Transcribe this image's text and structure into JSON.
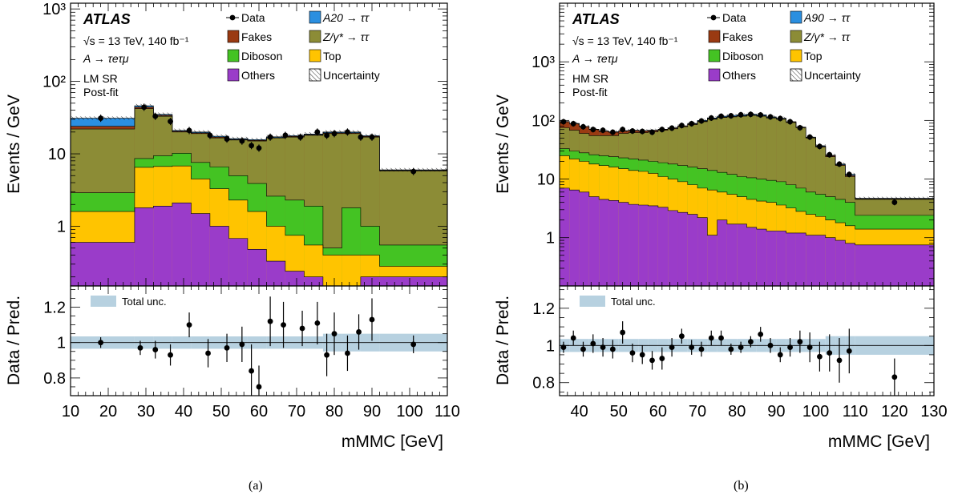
{
  "figure": {
    "captions": [
      "(a)",
      "(b)"
    ]
  },
  "colors": {
    "data": "#000000",
    "signal": "#2b8fe0",
    "fakes": "#9a3a12",
    "ztt": "#8c8c36",
    "diboson": "#44c323",
    "top": "#ffc400",
    "others": "#9a3cc9",
    "uncertainty_band": "#b7d1e0"
  },
  "chart_data": [
    {
      "type": "area",
      "panel": "(a)",
      "experiment": "ATLAS",
      "energy_label": "√s = 13 TeV, 140 fb⁻¹",
      "process_label": "A → τeτμ",
      "region_labels": [
        "LM SR",
        "Post-fit"
      ],
      "ylabel": "Events / GeV",
      "ratio_ylabel": "Data / Pred.",
      "xlabel": "mMMC [GeV]",
      "xlim": [
        10,
        110
      ],
      "ylim": [
        0.15,
        1200
      ],
      "yscale": "log",
      "xticks": [
        10,
        20,
        30,
        40,
        50,
        60,
        70,
        80,
        90,
        100,
        110
      ],
      "yticks": [
        {
          "v": 1000,
          "label": "10³"
        },
        {
          "v": 100,
          "label": "10²"
        },
        {
          "v": 10,
          "label": "10"
        },
        {
          "v": 1,
          "label": "1"
        }
      ],
      "ratio_ylim": [
        0.7,
        1.32
      ],
      "ratio_yticks": [
        0.8,
        1,
        1.2
      ],
      "ratio_ytick_labels": [
        "0.8",
        "1",
        "1.2"
      ],
      "legend": [
        {
          "label": "Data",
          "kind": "data"
        },
        {
          "label": "A20 → ττ",
          "kind": "fill",
          "color": "#2b8fe0"
        },
        {
          "label": "Fakes",
          "kind": "fill",
          "color": "#9a3a12"
        },
        {
          "label": "Z/γ* → ττ",
          "kind": "fill",
          "color": "#8c8c36"
        },
        {
          "label": "Diboson",
          "kind": "fill",
          "color": "#44c323"
        },
        {
          "label": "Top",
          "kind": "fill",
          "color": "#ffc400"
        },
        {
          "label": "Others",
          "kind": "fill",
          "color": "#9a3cc9"
        },
        {
          "label": "Uncertainty",
          "kind": "hatch"
        }
      ],
      "ratio_legend": "Total unc.",
      "bin_edges": [
        10,
        27,
        32,
        37,
        42,
        47,
        52,
        57,
        62,
        67,
        72,
        77,
        82,
        87,
        92,
        110
      ],
      "stacks": [
        {
          "name": "Others",
          "color": "#9a3cc9",
          "cumulative": [
            0.6,
            1.8,
            1.9,
            2.1,
            1.5,
            1.0,
            0.68,
            0.48,
            0.33,
            0.24,
            0.2,
            0.15,
            0.15,
            0.2,
            0.2
          ]
        },
        {
          "name": "Top",
          "color": "#ffc400",
          "cumulative": [
            1.6,
            6.5,
            6.7,
            6.8,
            4.5,
            3.3,
            2.3,
            1.6,
            1.0,
            0.75,
            0.55,
            0.4,
            0.4,
            0.4,
            0.28
          ]
        },
        {
          "name": "Diboson",
          "color": "#44c323",
          "cumulative": [
            2.9,
            8.6,
            9.4,
            10.2,
            7.6,
            6.6,
            5.0,
            3.9,
            2.6,
            2.3,
            1.9,
            0.5,
            1.8,
            1.0,
            0.55
          ]
        },
        {
          "name": "Z/γ* → ττ",
          "color": "#8c8c36",
          "cumulative": [
            22,
            42,
            33,
            20,
            19,
            16.5,
            15.5,
            15,
            16.5,
            17,
            18,
            19,
            19,
            17,
            5.8
          ]
        },
        {
          "name": "Fakes",
          "color": "#9a3a12",
          "cumulative": [
            24,
            44,
            34,
            20.5,
            19.5,
            17,
            15.8,
            15.3,
            16.8,
            17.4,
            18.4,
            19.5,
            19.5,
            17.4,
            5.9
          ]
        },
        {
          "name": "A20 → ττ",
          "color": "#2b8fe0",
          "cumulative": [
            31,
            46,
            35,
            21,
            20,
            17.5,
            16.2,
            15.7,
            17.2,
            17.8,
            18.8,
            20,
            20,
            17.8,
            6.0
          ]
        }
      ],
      "data_points": [
        {
          "x": 18,
          "y": 31
        },
        {
          "x": 29.5,
          "y": 44
        },
        {
          "x": 32.5,
          "y": 33
        },
        {
          "x": 36.5,
          "y": 28
        },
        {
          "x": 41.5,
          "y": 21
        },
        {
          "x": 47,
          "y": 18
        },
        {
          "x": 51.5,
          "y": 16
        },
        {
          "x": 55.5,
          "y": 15
        },
        {
          "x": 58,
          "y": 13
        },
        {
          "x": 60,
          "y": 12
        },
        {
          "x": 63,
          "y": 17
        },
        {
          "x": 67,
          "y": 18
        },
        {
          "x": 71,
          "y": 17
        },
        {
          "x": 75.5,
          "y": 20
        },
        {
          "x": 78,
          "y": 18
        },
        {
          "x": 80,
          "y": 19
        },
        {
          "x": 83.5,
          "y": 20
        },
        {
          "x": 87,
          "y": 17
        },
        {
          "x": 90,
          "y": 17
        },
        {
          "x": 101,
          "y": 5.7
        }
      ],
      "ratio_points": [
        {
          "x": 18,
          "y": 1.0,
          "err": 0.03
        },
        {
          "x": 28.5,
          "y": 0.97,
          "err": 0.04
        },
        {
          "x": 32.5,
          "y": 0.96,
          "err": 0.05
        },
        {
          "x": 36.5,
          "y": 0.93,
          "err": 0.06
        },
        {
          "x": 41.5,
          "y": 1.1,
          "err": 0.07
        },
        {
          "x": 46.5,
          "y": 0.94,
          "err": 0.08
        },
        {
          "x": 51.5,
          "y": 0.97,
          "err": 0.08
        },
        {
          "x": 55.5,
          "y": 0.99,
          "err": 0.1
        },
        {
          "x": 58,
          "y": 0.84,
          "err": 0.15
        },
        {
          "x": 60,
          "y": 0.75,
          "err": 0.12
        },
        {
          "x": 63,
          "y": 1.12,
          "err": 0.14
        },
        {
          "x": 66.5,
          "y": 1.1,
          "err": 0.13
        },
        {
          "x": 71.5,
          "y": 1.08,
          "err": 0.1
        },
        {
          "x": 75.5,
          "y": 1.11,
          "err": 0.12
        },
        {
          "x": 78,
          "y": 0.93,
          "err": 0.12
        },
        {
          "x": 80,
          "y": 1.05,
          "err": 0.12
        },
        {
          "x": 83.5,
          "y": 0.94,
          "err": 0.1
        },
        {
          "x": 86.5,
          "y": 1.06,
          "err": 0.1
        },
        {
          "x": 90,
          "y": 1.13,
          "err": 0.12
        },
        {
          "x": 101,
          "y": 0.99,
          "err": 0.05
        }
      ]
    },
    {
      "type": "area",
      "panel": "(b)",
      "experiment": "ATLAS",
      "energy_label": "√s = 13 TeV, 140 fb⁻¹",
      "process_label": "A → τeτμ",
      "region_labels": [
        "HM SR",
        "Post-fit"
      ],
      "ylabel": "Events / GeV",
      "ratio_ylabel": "Data / Pred.",
      "xlabel": "mMMC [GeV]",
      "xlim": [
        35,
        130
      ],
      "ylim": [
        0.15,
        10000
      ],
      "yscale": "log",
      "xticks": [
        40,
        50,
        60,
        70,
        80,
        90,
        100,
        110,
        120,
        130
      ],
      "yticks": [
        {
          "v": 1000,
          "label": "10³"
        },
        {
          "v": 100,
          "label": "10²"
        },
        {
          "v": 10,
          "label": "10"
        },
        {
          "v": 1,
          "label": "1"
        }
      ],
      "ratio_ylim": [
        0.73,
        1.32
      ],
      "ratio_yticks": [
        0.8,
        1,
        1.2
      ],
      "ratio_ytick_labels": [
        "0.8",
        "1",
        "1.2"
      ],
      "legend": [
        {
          "label": "Data",
          "kind": "data"
        },
        {
          "label": "A90 → ττ",
          "kind": "fill",
          "color": "#2b8fe0"
        },
        {
          "label": "Fakes",
          "kind": "fill",
          "color": "#9a3a12"
        },
        {
          "label": "Z/γ* → ττ",
          "kind": "fill",
          "color": "#8c8c36"
        },
        {
          "label": "Diboson",
          "kind": "fill",
          "color": "#44c323"
        },
        {
          "label": "Top",
          "kind": "fill",
          "color": "#ffc400"
        },
        {
          "label": "Others",
          "kind": "fill",
          "color": "#9a3cc9"
        },
        {
          "label": "Uncertainty",
          "kind": "hatch"
        }
      ],
      "ratio_legend": "Total unc.",
      "bin_edges": [
        35,
        37.5,
        40,
        42.5,
        45,
        47.5,
        50,
        52.5,
        55,
        57.5,
        60,
        62.5,
        65,
        67.5,
        70,
        72.5,
        75,
        77.5,
        80,
        82.5,
        85,
        87.5,
        90,
        92.5,
        95,
        97.5,
        100,
        102.5,
        105,
        107.5,
        110,
        130
      ],
      "stacks": [
        {
          "name": "Others",
          "color": "#9a3cc9",
          "cumulative": [
            7,
            6.5,
            6,
            5,
            4.5,
            4.3,
            4.0,
            3.7,
            3.6,
            3.5,
            3.3,
            2.9,
            2.7,
            2.5,
            2.2,
            1.1,
            2.0,
            1.7,
            1.7,
            1.5,
            1.4,
            1.3,
            1.3,
            1.2,
            1.2,
            1.1,
            1.1,
            1.0,
            0.9,
            0.8,
            0.75
          ]
        },
        {
          "name": "Top",
          "color": "#ffc400",
          "cumulative": [
            25,
            22,
            20,
            18,
            17,
            16,
            15,
            14,
            13.5,
            12.5,
            11,
            10,
            9.0,
            8.0,
            7.0,
            6.5,
            6.0,
            5.5,
            5.0,
            4.5,
            4.2,
            4.0,
            3.6,
            3.2,
            2.8,
            2.5,
            2.3,
            2.0,
            1.8,
            1.6,
            1.4
          ]
        },
        {
          "name": "Diboson",
          "color": "#44c323",
          "cumulative": [
            33,
            30,
            28,
            26,
            25,
            24,
            23,
            22,
            21,
            20,
            19,
            18,
            17,
            16,
            15,
            14,
            13,
            12,
            11,
            10.5,
            10,
            9.5,
            9.0,
            8.0,
            7.0,
            6.0,
            5.5,
            5.0,
            4.5,
            4.0,
            2.4
          ]
        },
        {
          "name": "Z/γ* → ττ",
          "color": "#8c8c36",
          "cumulative": [
            75,
            68,
            60,
            55,
            55,
            55,
            60,
            62,
            62,
            64,
            68,
            72,
            78,
            85,
            95,
            105,
            112,
            115,
            118,
            122,
            118,
            110,
            105,
            92,
            75,
            50,
            35,
            24,
            17,
            11,
            4.5
          ]
        },
        {
          "name": "Fakes",
          "color": "#9a3a12",
          "cumulative": [
            95,
            88,
            78,
            70,
            65,
            63,
            66,
            67,
            66,
            67,
            70,
            74,
            80,
            87,
            97,
            107,
            114,
            117,
            120,
            124,
            120,
            112,
            107,
            94,
            76,
            51,
            36,
            25,
            17.5,
            11.5,
            4.6
          ]
        },
        {
          "name": "A90 → ττ",
          "color": "#2b8fe0",
          "cumulative": [
            96,
            89,
            79,
            71,
            66,
            64,
            67,
            68,
            67,
            68,
            71,
            75,
            81,
            89,
            100,
            110,
            118,
            122,
            125,
            128,
            125,
            115,
            109,
            95,
            77,
            52,
            37,
            25.5,
            18,
            12,
            4.7
          ]
        }
      ],
      "data_points": [
        {
          "x": 36,
          "y": 95
        },
        {
          "x": 38.5,
          "y": 88
        },
        {
          "x": 41,
          "y": 78
        },
        {
          "x": 43.5,
          "y": 70
        },
        {
          "x": 46,
          "y": 68
        },
        {
          "x": 48.5,
          "y": 63
        },
        {
          "x": 51,
          "y": 70
        },
        {
          "x": 53.5,
          "y": 66
        },
        {
          "x": 56,
          "y": 65
        },
        {
          "x": 58.5,
          "y": 63
        },
        {
          "x": 61,
          "y": 70
        },
        {
          "x": 63.5,
          "y": 74
        },
        {
          "x": 66,
          "y": 82
        },
        {
          "x": 68.5,
          "y": 88
        },
        {
          "x": 71,
          "y": 98
        },
        {
          "x": 73.5,
          "y": 110
        },
        {
          "x": 76,
          "y": 118
        },
        {
          "x": 78.5,
          "y": 120
        },
        {
          "x": 81,
          "y": 125
        },
        {
          "x": 83.5,
          "y": 127
        },
        {
          "x": 86,
          "y": 124
        },
        {
          "x": 88.5,
          "y": 115
        },
        {
          "x": 91,
          "y": 108
        },
        {
          "x": 93.5,
          "y": 95
        },
        {
          "x": 96,
          "y": 75
        },
        {
          "x": 98.5,
          "y": 52
        },
        {
          "x": 101,
          "y": 36
        },
        {
          "x": 103.5,
          "y": 26
        },
        {
          "x": 106,
          "y": 18
        },
        {
          "x": 108.5,
          "y": 12
        },
        {
          "x": 120,
          "y": 4
        }
      ],
      "ratio_points": [
        {
          "x": 36,
          "y": 0.99,
          "err": 0.03
        },
        {
          "x": 38.5,
          "y": 1.04,
          "err": 0.04
        },
        {
          "x": 41,
          "y": 0.98,
          "err": 0.04
        },
        {
          "x": 43.5,
          "y": 1.01,
          "err": 0.05
        },
        {
          "x": 46,
          "y": 0.99,
          "err": 0.05
        },
        {
          "x": 48.5,
          "y": 0.98,
          "err": 0.05
        },
        {
          "x": 51,
          "y": 1.07,
          "err": 0.06
        },
        {
          "x": 53.5,
          "y": 0.96,
          "err": 0.05
        },
        {
          "x": 56,
          "y": 0.95,
          "err": 0.05
        },
        {
          "x": 58.5,
          "y": 0.92,
          "err": 0.05
        },
        {
          "x": 61,
          "y": 0.93,
          "err": 0.06
        },
        {
          "x": 63.5,
          "y": 0.99,
          "err": 0.05
        },
        {
          "x": 66,
          "y": 1.05,
          "err": 0.04
        },
        {
          "x": 68.5,
          "y": 0.99,
          "err": 0.04
        },
        {
          "x": 71,
          "y": 0.98,
          "err": 0.04
        },
        {
          "x": 73.5,
          "y": 1.04,
          "err": 0.04
        },
        {
          "x": 76,
          "y": 1.04,
          "err": 0.04
        },
        {
          "x": 78.5,
          "y": 0.98,
          "err": 0.03
        },
        {
          "x": 81,
          "y": 0.99,
          "err": 0.03
        },
        {
          "x": 83.5,
          "y": 1.02,
          "err": 0.03
        },
        {
          "x": 86,
          "y": 1.06,
          "err": 0.04
        },
        {
          "x": 88.5,
          "y": 1.0,
          "err": 0.04
        },
        {
          "x": 91,
          "y": 0.95,
          "err": 0.04
        },
        {
          "x": 93.5,
          "y": 0.99,
          "err": 0.05
        },
        {
          "x": 96,
          "y": 1.02,
          "err": 0.06
        },
        {
          "x": 98.5,
          "y": 0.99,
          "err": 0.08
        },
        {
          "x": 101,
          "y": 0.94,
          "err": 0.08
        },
        {
          "x": 103.5,
          "y": 0.96,
          "err": 0.1
        },
        {
          "x": 106,
          "y": 0.92,
          "err": 0.12
        },
        {
          "x": 108.5,
          "y": 0.97,
          "err": 0.12
        },
        {
          "x": 120,
          "y": 0.83,
          "err": 0.1
        }
      ]
    }
  ]
}
